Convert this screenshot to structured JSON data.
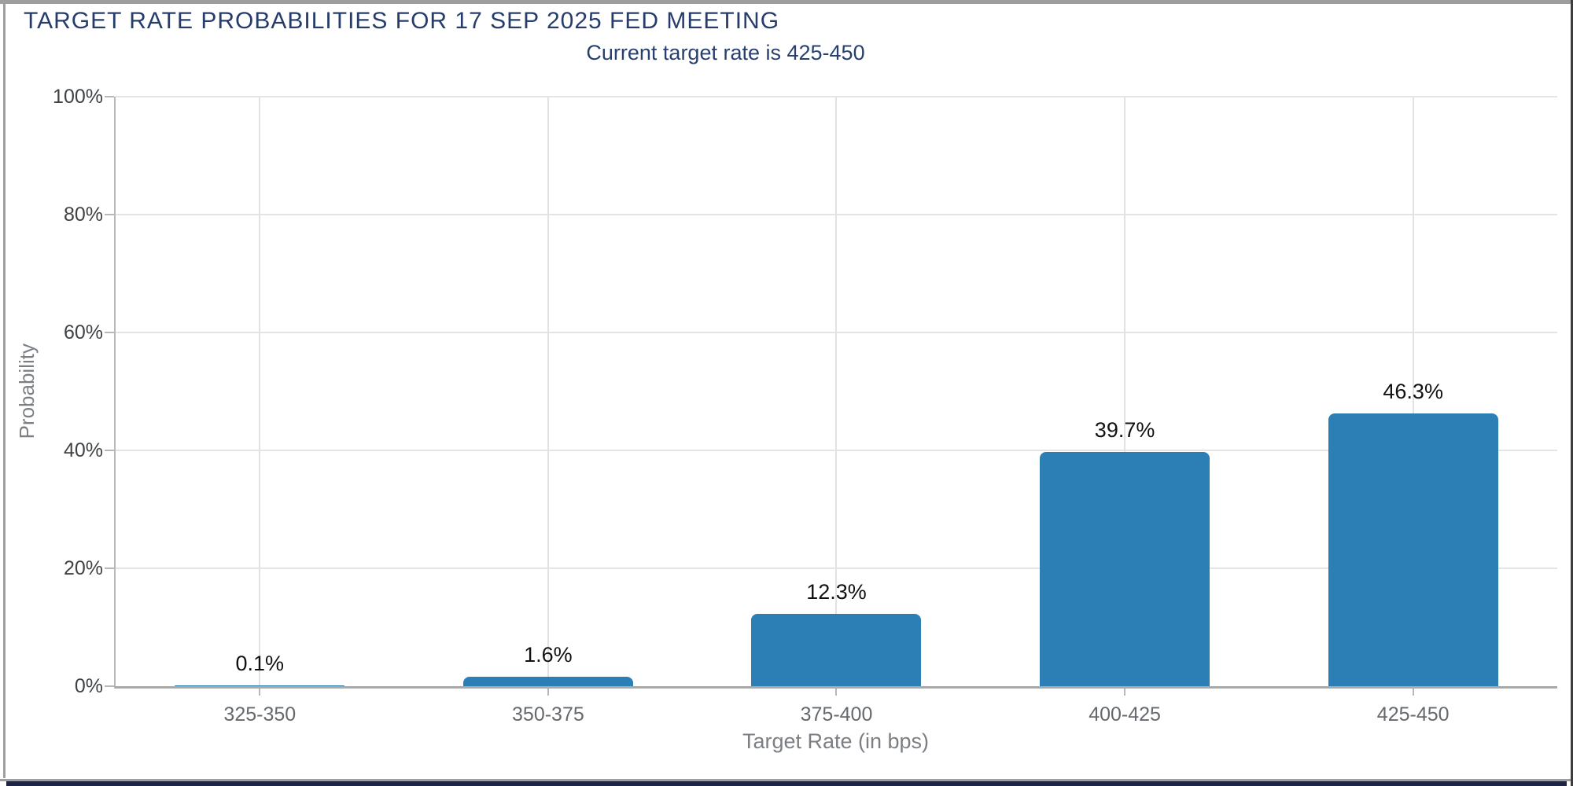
{
  "panel": {
    "background": "#ffffff",
    "border_color": "#9e9e9e",
    "right_edge_color": "#3d3d3d",
    "footer_strip_color": "#1c2642"
  },
  "header": {
    "title": "TARGET RATE PROBABILITIES FOR 17 SEP 2025 FED MEETING",
    "subtitle": "Current target rate is 425-450",
    "title_color": "#263c6c",
    "subtitle_color": "#27406f"
  },
  "chart_data": {
    "type": "bar",
    "title": "TARGET RATE PROBABILITIES FOR 17 SEP 2025 FED MEETING",
    "subtitle": "Current target rate is 425-450",
    "categories": [
      "325-350",
      "350-375",
      "375-400",
      "400-425",
      "425-450"
    ],
    "values": [
      0.1,
      1.6,
      12.3,
      39.7,
      46.3
    ],
    "value_labels": [
      "0.1%",
      "1.6%",
      "12.3%",
      "39.7%",
      "46.3%"
    ],
    "xlabel": "Target Rate (in bps)",
    "ylabel": "Probability",
    "ylim": [
      0,
      100
    ],
    "ytick_values": [
      0,
      20,
      40,
      60,
      80,
      100
    ],
    "ytick_labels": [
      "0%",
      "20%",
      "40%",
      "60%",
      "80%",
      "100%"
    ],
    "grid": true,
    "legend": "none",
    "bar_color": "#2c7fb4",
    "grid_color": "#e4e4e4",
    "axis_color": "#a9a9a9",
    "ytick_label_color": "#3f4245",
    "xtick_label_color": "#65696d",
    "axis_title_color": "#7b7f83",
    "value_label_color": "#111111"
  }
}
